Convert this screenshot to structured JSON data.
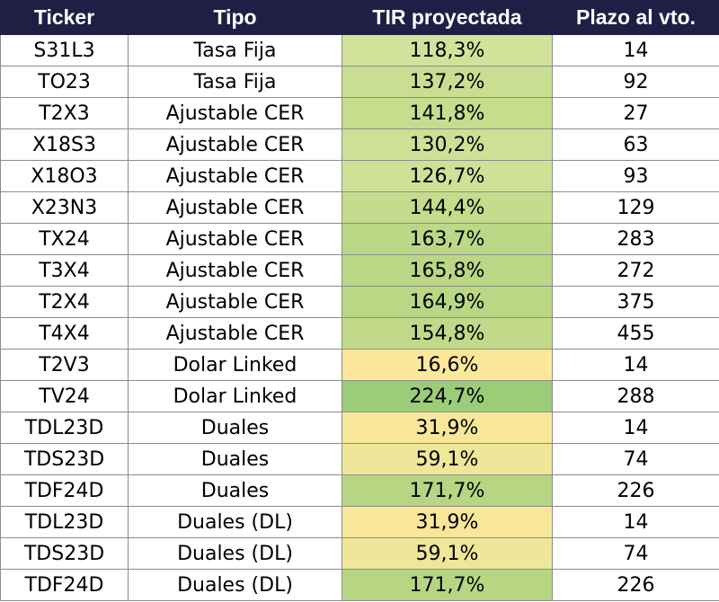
{
  "headers": [
    "Ticker",
    "Tipo",
    "TIR proyectada",
    "Plazo al vto."
  ],
  "rows": [
    {
      "ticker": "S31L3",
      "tipo": "Tasa Fija",
      "tir": "118,3%",
      "plazo": "14",
      "tir_color": "#d3e29b"
    },
    {
      "ticker": "TO23",
      "tipo": "Tasa Fija",
      "tir": "137,2%",
      "plazo": "92",
      "tir_color": "#c9de91"
    },
    {
      "ticker": "T2X3",
      "tipo": "Ajustable CER",
      "tir": "141,8%",
      "plazo": "27",
      "tir_color": "#c6dd8e"
    },
    {
      "ticker": "X18S3",
      "tipo": "Ajustable CER",
      "tir": "130,2%",
      "plazo": "63",
      "tir_color": "#cde095"
    },
    {
      "ticker": "X18O3",
      "tipo": "Ajustable CER",
      "tir": "126,7%",
      "plazo": "93",
      "tir_color": "#cfe197"
    },
    {
      "ticker": "X23N3",
      "tipo": "Ajustable CER",
      "tir": "144,4%",
      "plazo": "129",
      "tir_color": "#c5dc8d"
    },
    {
      "ticker": "TX24",
      "tipo": "Ajustable CER",
      "tir": "163,7%",
      "plazo": "283",
      "tir_color": "#bbd886"
    },
    {
      "ticker": "T3X4",
      "tipo": "Ajustable CER",
      "tir": "165,8%",
      "plazo": "272",
      "tir_color": "#bad785"
    },
    {
      "ticker": "T2X4",
      "tipo": "Ajustable CER",
      "tir": "164,9%",
      "plazo": "375",
      "tir_color": "#bad785"
    },
    {
      "ticker": "T4X4",
      "tipo": "Ajustable CER",
      "tir": "154,8%",
      "plazo": "455",
      "tir_color": "#c0da89"
    },
    {
      "ticker": "T2V3",
      "tipo": "Dolar Linked",
      "tir": "16,6%",
      "plazo": "14",
      "tir_color": "#fde79a"
    },
    {
      "ticker": "TV24",
      "tipo": "Dolar Linked",
      "tir": "224,7%",
      "plazo": "288",
      "tir_color": "#9bcd78"
    },
    {
      "ticker": "TDL23D",
      "tipo": "Duales",
      "tir": "31,9%",
      "plazo": "14",
      "tir_color": "#f8e799"
    },
    {
      "ticker": "TDS23D",
      "tipo": "Duales",
      "tir": "59,1%",
      "plazo": "74",
      "tir_color": "#eee698"
    },
    {
      "ticker": "TDF24D",
      "tipo": "Duales",
      "tir": "171,7%",
      "plazo": "226",
      "tir_color": "#b7d683"
    },
    {
      "ticker": "TDL23D",
      "tipo": "Duales (DL)",
      "tir": "31,9%",
      "plazo": "14",
      "tir_color": "#f8e799"
    },
    {
      "ticker": "TDS23D",
      "tipo": "Duales (DL)",
      "tir": "59,1%",
      "plazo": "74",
      "tir_color": "#eee698"
    },
    {
      "ticker": "TDF24D",
      "tipo": "Duales (DL)",
      "tir": "171,7%",
      "plazo": "226",
      "tir_color": "#b7d683"
    }
  ],
  "colors": {
    "header_bg": "#1f1f46",
    "header_text": "#ffffff",
    "grid": "#8c8c8c"
  }
}
